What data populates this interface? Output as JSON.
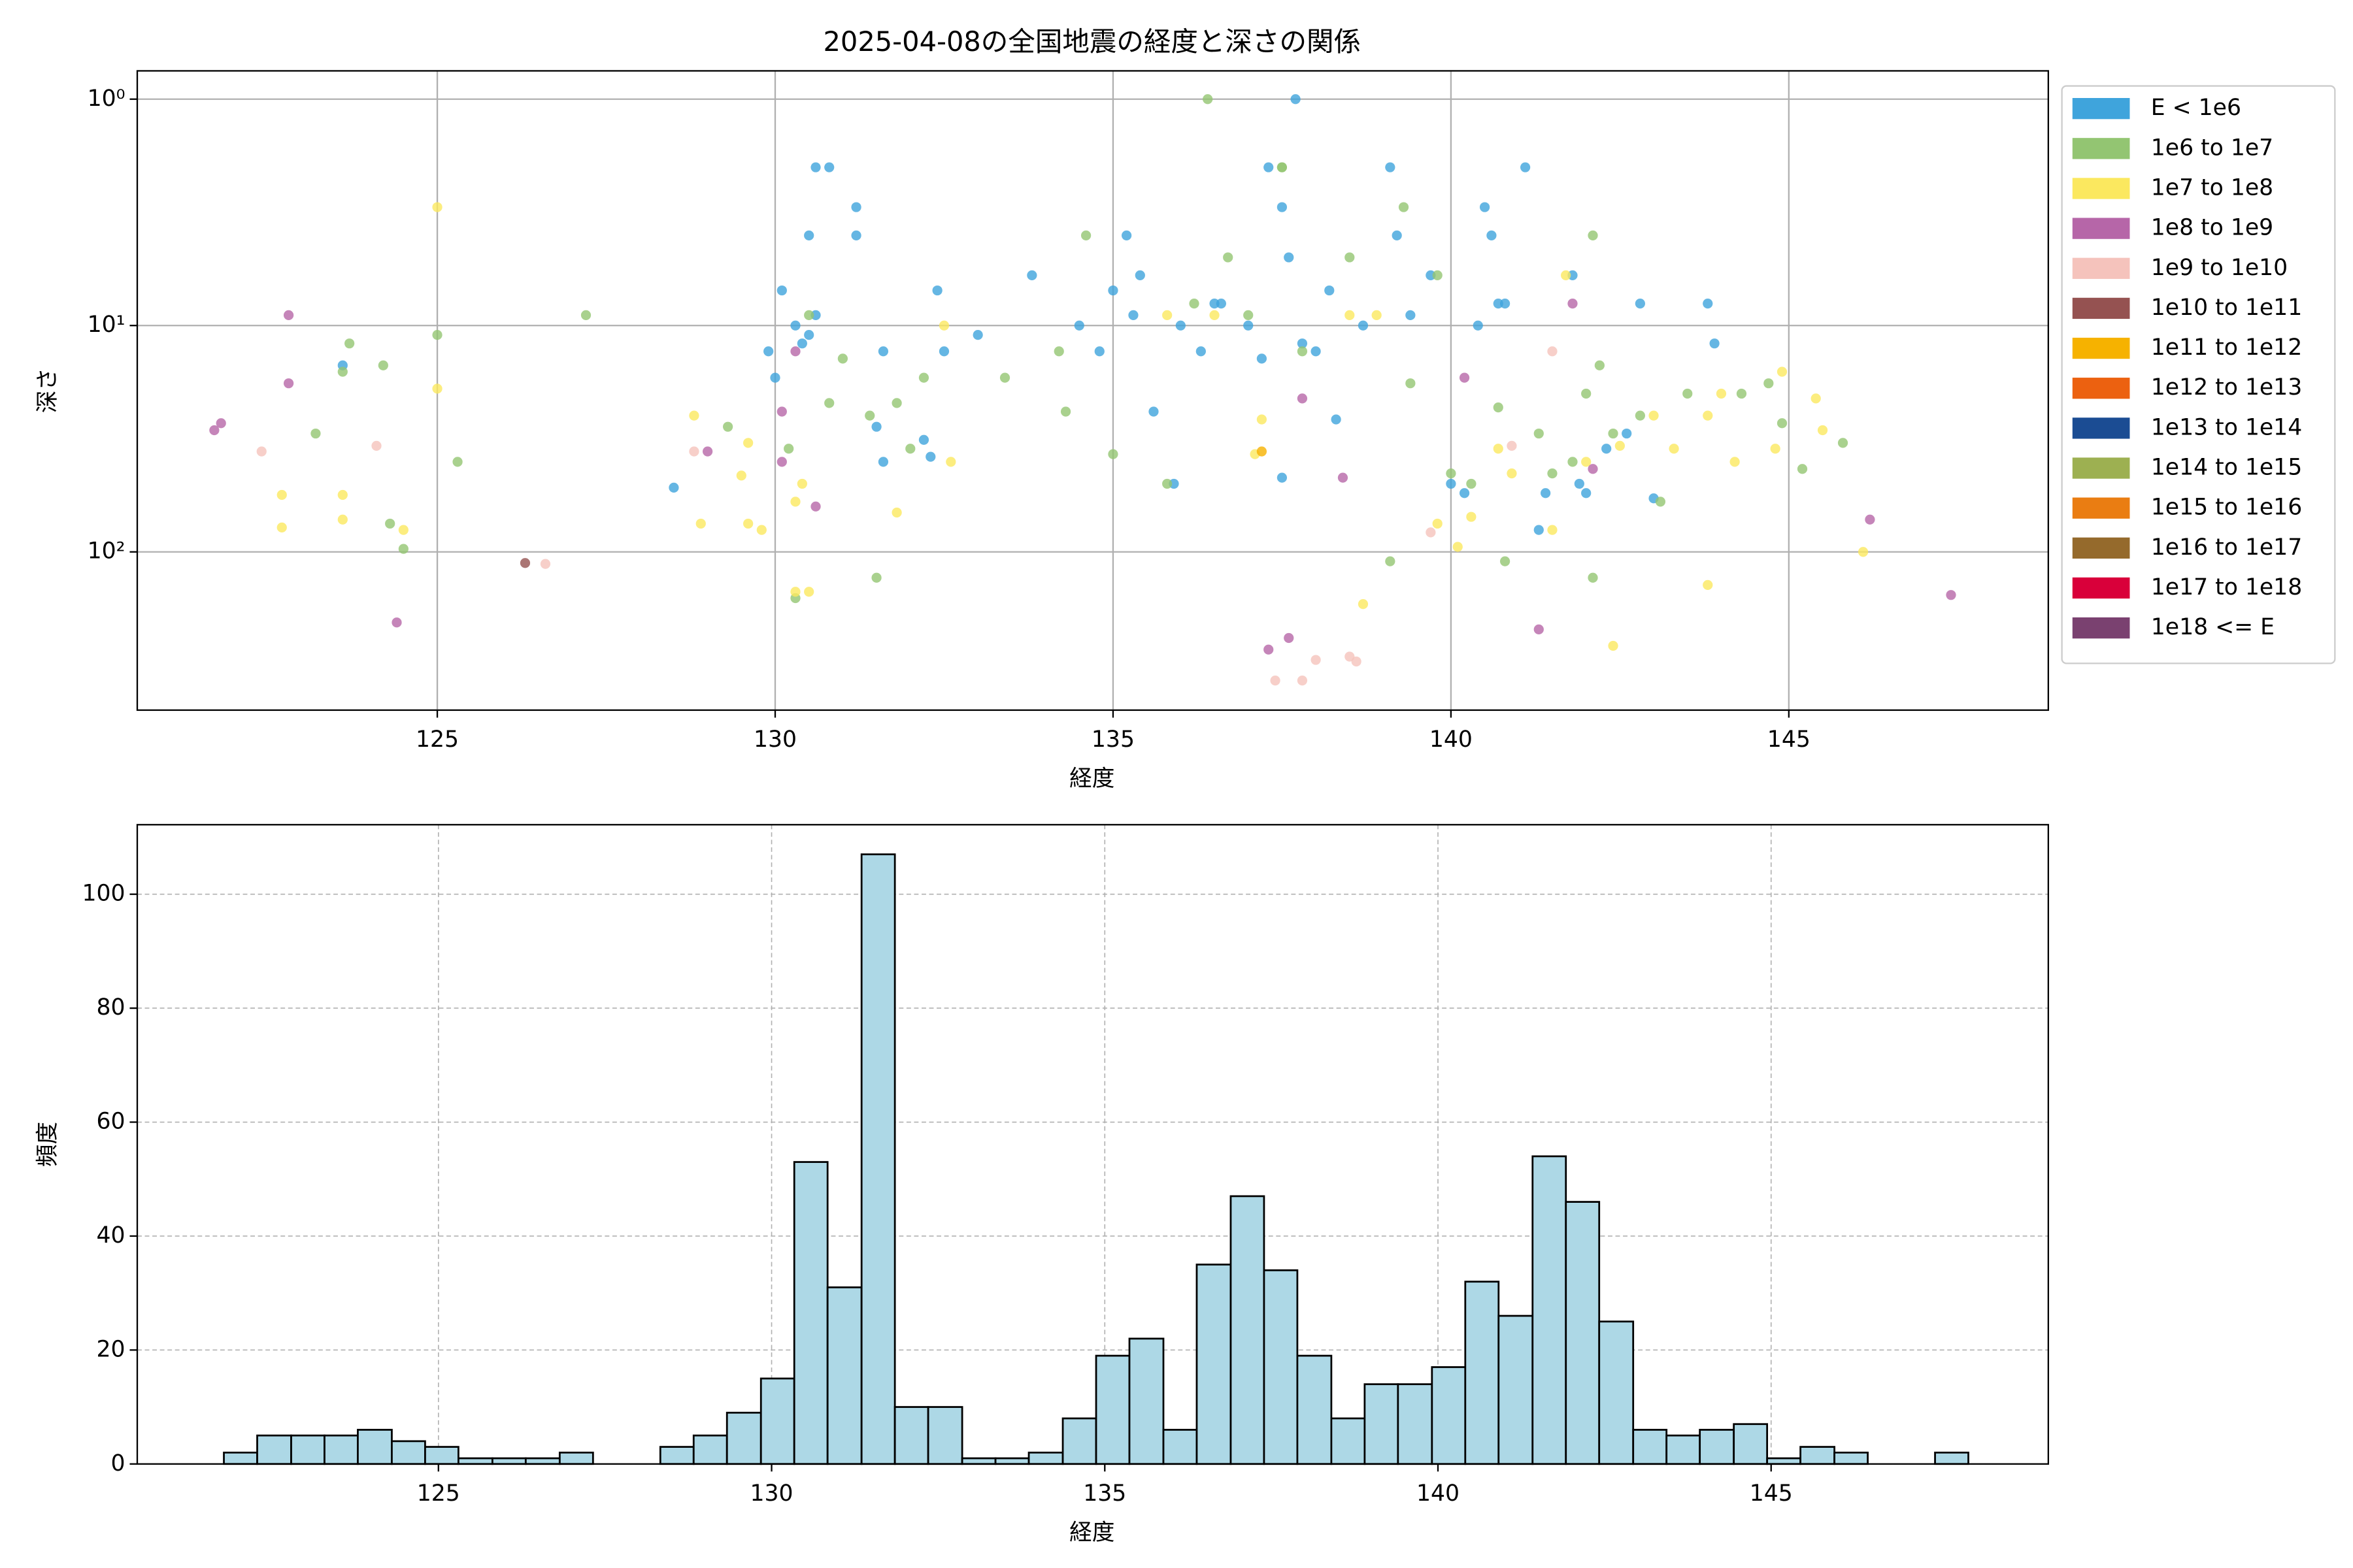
{
  "chart_data": [
    {
      "type": "scatter",
      "title": "2025-04-08の全国地震の経度と深さの関係",
      "xlabel": "経度",
      "ylabel": "深さ",
      "xlim": [
        120.56,
        148.84
      ],
      "ylim": [
        0.75,
        500
      ],
      "y_log": true,
      "y_inverted": true,
      "xticks": [
        125,
        130,
        135,
        140,
        145
      ],
      "yticks": [
        {
          "value": 1,
          "label": "10⁰"
        },
        {
          "value": 10,
          "label": "10¹"
        },
        {
          "value": 100,
          "label": "10²"
        }
      ],
      "grid": true,
      "legend": "outside upper right",
      "series": [
        {
          "name": "E < 1e6",
          "color": "#3fa4dc",
          "x": [
            123.6,
            128.5,
            129.9,
            130.0,
            130.1,
            130.3,
            130.4,
            130.5,
            130.6,
            130.8,
            130.5,
            130.6,
            131.2,
            131.2,
            131.6,
            131.5,
            131.6,
            132.2,
            132.3,
            132.5,
            132.4,
            133.0,
            133.8,
            134.5,
            134.8,
            135.0,
            135.2,
            135.4,
            135.3,
            135.6,
            135.9,
            136.0,
            136.3,
            136.6,
            137.0,
            137.2,
            137.3,
            137.5,
            137.6,
            137.5,
            137.8,
            138.0,
            138.2,
            138.3,
            138.7,
            139.1,
            139.2,
            139.4,
            139.7,
            140.0,
            140.2,
            140.4,
            140.5,
            140.6,
            140.7,
            140.8,
            141.1,
            141.3,
            141.4,
            141.8,
            141.9,
            142.0,
            142.3,
            142.6,
            142.8,
            143.0,
            143.8,
            143.9,
            136.5,
            137.7
          ],
          "values": [
            15,
            52,
            13,
            17,
            7,
            10,
            12,
            4,
            2,
            2,
            11,
            9,
            3,
            4,
            13,
            28,
            40,
            32,
            38,
            13,
            7,
            11,
            6,
            10,
            13,
            7,
            4,
            6,
            9,
            24,
            50,
            10,
            13,
            8,
            10,
            14,
            2,
            3,
            5,
            47,
            12,
            13,
            7,
            26,
            10,
            2,
            4,
            9,
            6,
            50,
            55,
            10,
            3,
            4,
            8,
            8,
            2,
            80,
            55,
            6,
            50,
            55,
            35,
            30,
            8,
            58,
            8,
            12,
            8,
            1
          ]
        },
        {
          "name": "1e6 to 1e7",
          "color": "#93c572",
          "x": [
            123.6,
            123.7,
            123.2,
            124.2,
            124.3,
            124.5,
            125.0,
            125.3,
            127.2,
            129.3,
            130.2,
            130.5,
            130.8,
            131.0,
            131.4,
            131.8,
            132.0,
            132.2,
            130.3,
            131.5,
            133.4,
            134.2,
            134.3,
            134.6,
            135.0,
            135.8,
            136.2,
            136.4,
            136.7,
            137.0,
            137.5,
            137.8,
            138.5,
            139.1,
            139.3,
            139.4,
            139.8,
            140.0,
            140.3,
            140.7,
            140.8,
            141.3,
            141.5,
            141.8,
            142.0,
            142.1,
            142.2,
            142.4,
            142.8,
            143.1,
            143.5,
            144.3,
            144.7,
            144.9,
            145.2,
            145.8,
            142.1,
            137.5
          ],
          "values": [
            16,
            12,
            30,
            15,
            75,
            97,
            11,
            40,
            9,
            28,
            35,
            9,
            22,
            14,
            25,
            22,
            35,
            17,
            160,
            130,
            17,
            13,
            24,
            4,
            37,
            50,
            8,
            1,
            5,
            9,
            2,
            13,
            5,
            110,
            3,
            18,
            6,
            45,
            50,
            23,
            110,
            30,
            45,
            40,
            20,
            4,
            15,
            30,
            25,
            60,
            20,
            20,
            18,
            27,
            43,
            33,
            130,
            2
          ]
        },
        {
          "name": "1e7 to 1e8",
          "color": "#fbe85f",
          "x": [
            122.7,
            122.7,
            123.6,
            123.6,
            124.5,
            125.0,
            125.0,
            128.8,
            128.9,
            129.6,
            129.5,
            129.6,
            129.8,
            130.3,
            130.5,
            130.4,
            130.3,
            131.8,
            132.5,
            132.6,
            135.8,
            136.5,
            137.1,
            137.2,
            138.5,
            138.9,
            138.7,
            139.8,
            140.1,
            140.7,
            140.9,
            141.5,
            142.0,
            142.5,
            143.0,
            143.3,
            142.4,
            143.8,
            143.8,
            144.0,
            144.2,
            144.8,
            144.9,
            145.4,
            145.5,
            146.1,
            141.7,
            140.3
          ],
          "values": [
            56,
            78,
            56,
            72,
            80,
            3,
            19,
            25,
            75,
            33,
            46,
            75,
            80,
            150,
            150,
            50,
            60,
            67,
            10,
            40,
            9,
            9,
            37,
            26,
            9,
            9,
            170,
            75,
            95,
            35,
            45,
            80,
            40,
            34,
            25,
            35,
            260,
            140,
            25,
            20,
            40,
            35,
            16,
            21,
            29,
            100,
            6,
            70
          ]
        },
        {
          "name": "1e8 to 1e9",
          "color": "#b666a8",
          "x": [
            121.7,
            121.8,
            122.8,
            122.8,
            124.4,
            129.0,
            130.1,
            130.1,
            130.6,
            130.3,
            137.3,
            137.6,
            137.8,
            138.4,
            140.2,
            141.3,
            141.8,
            142.1,
            146.2,
            147.4
          ],
          "values": [
            29,
            27,
            9,
            18,
            205,
            36,
            24,
            40,
            63,
            13,
            270,
            240,
            21,
            47,
            17,
            220,
            8,
            43,
            72,
            155
          ]
        },
        {
          "name": "1e9 to 1e10",
          "color": "#f5c3bc",
          "x": [
            122.4,
            124.1,
            126.6,
            128.8,
            139.7,
            140.9,
            141.5,
            137.4,
            137.8,
            138.0,
            138.5,
            138.6
          ],
          "values": [
            36,
            34,
            113,
            36,
            82,
            34,
            13,
            370,
            370,
            300,
            290,
            305
          ]
        },
        {
          "name": "1e10 to 1e11",
          "color": "#955251",
          "x": [
            126.3
          ],
          "values": [
            112
          ]
        },
        {
          "name": "1e11 to 1e12",
          "color": "#f6b200",
          "x": [
            137.2
          ],
          "values": [
            36
          ]
        },
        {
          "name": "1e12 to 1e13",
          "color": "#ec6110",
          "x": [],
          "values": []
        },
        {
          "name": "1e13 to 1e14",
          "color": "#1b4c93",
          "x": [],
          "values": []
        },
        {
          "name": "1e14 to 1e15",
          "color": "#9db051",
          "x": [],
          "values": []
        },
        {
          "name": "1e15 to 1e16",
          "color": "#ea7d12",
          "x": [],
          "values": []
        },
        {
          "name": "1e16 to 1e17",
          "color": "#956a2c",
          "x": [],
          "values": []
        },
        {
          "name": "1e17 to 1e18",
          "color": "#d9003a",
          "x": [],
          "values": []
        },
        {
          "name": "1e18 <= E",
          "color": "#7a4170",
          "x": [],
          "values": []
        }
      ]
    },
    {
      "type": "histogram",
      "xlabel": "経度",
      "ylabel": "頻度",
      "xlim": [
        120.48,
        149.16
      ],
      "ylim": [
        0,
        112.2
      ],
      "xticks": [
        125,
        130,
        135,
        140,
        145
      ],
      "yticks": [
        0,
        20,
        40,
        60,
        80,
        100
      ],
      "grid": true,
      "color": "#add8e6",
      "edgecolor": "#000000",
      "bins": [
        121.78,
        122.28,
        122.79,
        123.29,
        123.79,
        124.3,
        124.8,
        125.3,
        125.81,
        126.31,
        126.82,
        127.32,
        127.82,
        128.33,
        128.83,
        129.33,
        129.84,
        130.34,
        130.84,
        131.35,
        131.85,
        132.35,
        132.86,
        133.36,
        133.86,
        134.37,
        134.87,
        135.37,
        135.88,
        136.38,
        136.89,
        137.39,
        137.89,
        138.4,
        138.9,
        139.4,
        139.91,
        140.41,
        140.91,
        141.42,
        141.92,
        142.42,
        142.93,
        143.43,
        143.93,
        144.44,
        144.94,
        145.44,
        145.95,
        146.45,
        146.96,
        147.46,
        147.96
      ],
      "values": [
        2,
        5,
        5,
        5,
        6,
        4,
        3,
        1,
        1,
        1,
        2,
        0,
        0,
        3,
        5,
        9,
        15,
        53,
        31,
        107,
        10,
        10,
        1,
        1,
        2,
        8,
        19,
        22,
        6,
        35,
        47,
        34,
        19,
        8,
        14,
        14,
        17,
        32,
        26,
        54,
        46,
        25,
        6,
        5,
        6,
        7,
        1,
        3,
        2,
        0,
        0,
        2
      ]
    }
  ]
}
